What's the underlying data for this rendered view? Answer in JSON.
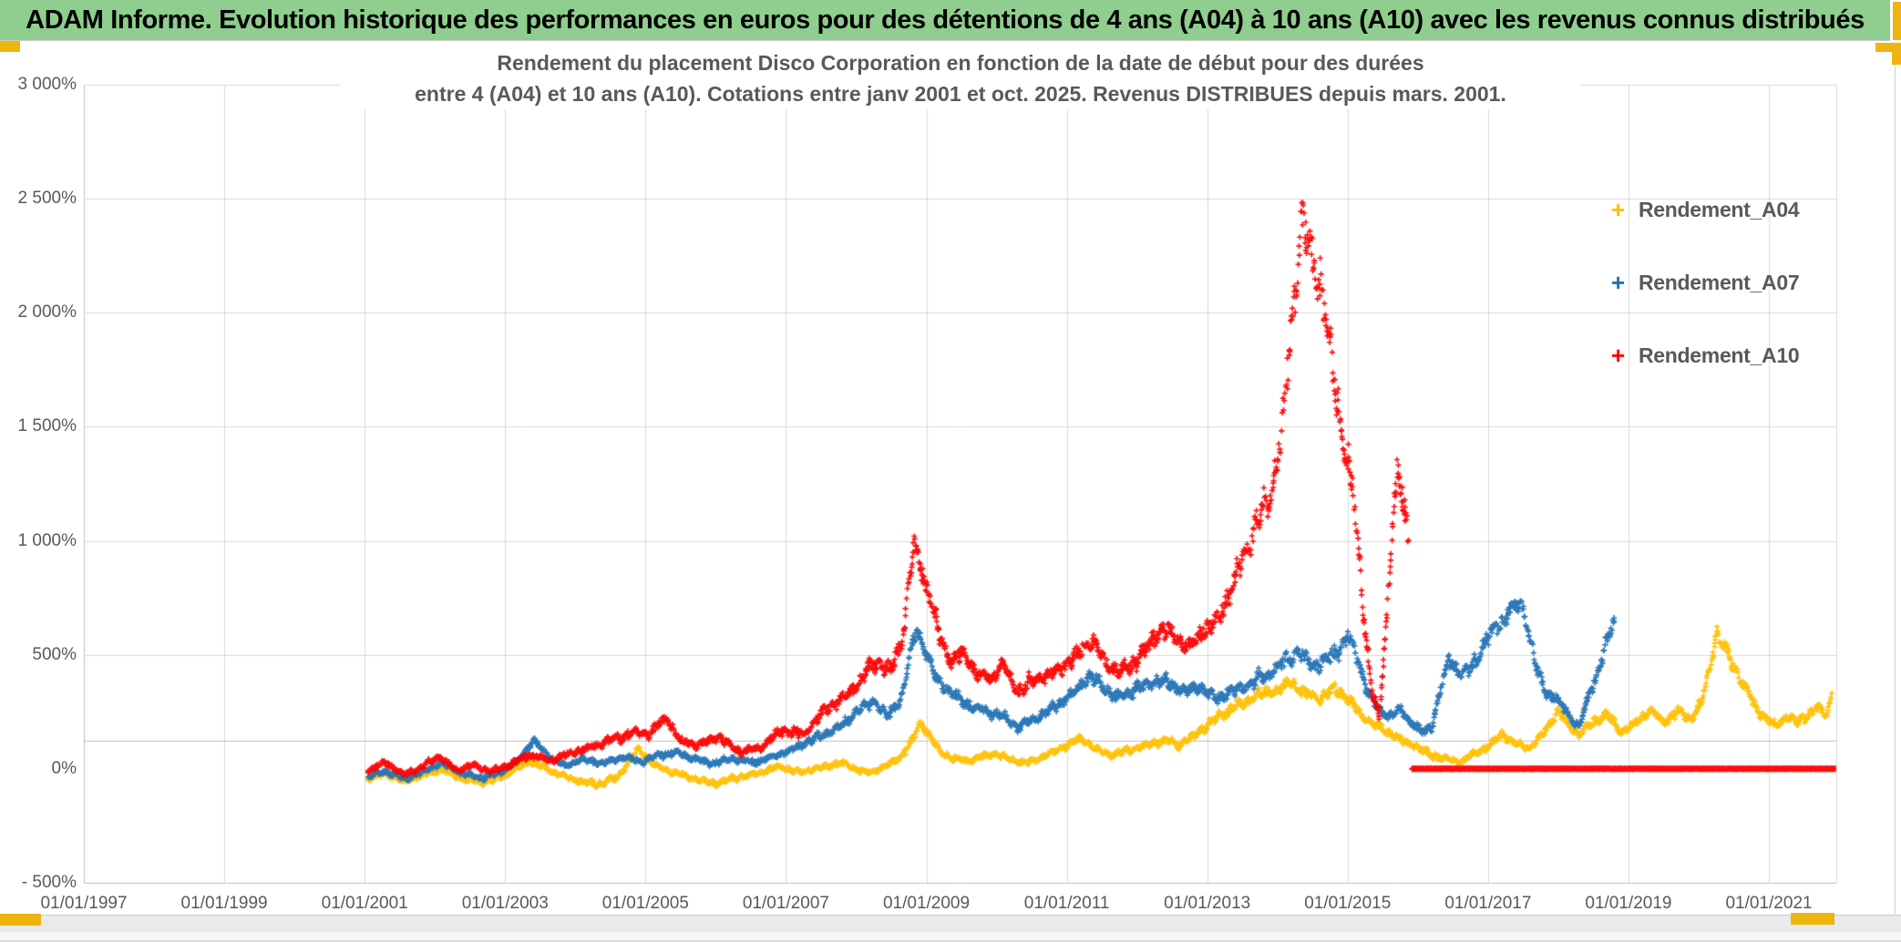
{
  "banner": {
    "text": "ADAM Informe. Evolution historique des performances en euros pour des détentions de 4 ans (A04) à 10 ans (A10) avec les revenus connus distribués"
  },
  "chart": {
    "title_line1": "Rendement du placement Disco Corporation en fonction de la date de début pour des durées",
    "title_line2": "entre 4 (A04) et 10 ans (A10). Cotations entre janv 2001 et oct. 2025. Revenus DISTRIBUES depuis mars. 2001."
  },
  "colors": {
    "banner_bg": "#8fce8e",
    "banner_text": "#000000",
    "gold_accent": "#edb50e",
    "grid": "#d9d9d9",
    "plot_border": "#bfbfbf",
    "axis_text": "#595959",
    "title_text": "#595959"
  },
  "chart_data": {
    "type": "scatter",
    "marker": "plus",
    "legend_position": "right-inside",
    "grid": true,
    "x_axis": {
      "tick_labels": [
        "01/01/1997",
        "01/01/1999",
        "01/01/2001",
        "01/01/2003",
        "01/01/2005",
        "01/01/2007",
        "01/01/2009",
        "01/01/2011",
        "01/01/2013",
        "01/01/2015",
        "01/01/2017",
        "01/01/2019",
        "01/01/2021"
      ],
      "tick_years": [
        1997,
        1999,
        2001,
        2003,
        2005,
        2007,
        2009,
        2011,
        2013,
        2015,
        2017,
        2019,
        2021
      ],
      "range_years": [
        1997,
        2021.96
      ]
    },
    "y_axis": {
      "tick_labels": [
        "3 000%",
        "2 500%",
        "2 000%",
        "1 500%",
        "1 000%",
        "500%",
        "0%",
        "- 500%"
      ],
      "tick_values": [
        3000,
        2500,
        2000,
        1500,
        1000,
        500,
        0,
        -500
      ],
      "range": [
        -500,
        3000
      ],
      "unlabeled_axis_line_value": 124
    },
    "series": [
      {
        "name": "Rendement_A04",
        "color": "#FFC000",
        "noise": {
          "base": 9,
          "prop": 0.035
        },
        "keypoints": [
          [
            2001.05,
            -45
          ],
          [
            2001.3,
            -20
          ],
          [
            2001.55,
            -55
          ],
          [
            2001.8,
            -30
          ],
          [
            2002.1,
            0
          ],
          [
            2002.4,
            -45
          ],
          [
            2002.7,
            -60
          ],
          [
            2003.0,
            -30
          ],
          [
            2003.35,
            35
          ],
          [
            2003.65,
            -10
          ],
          [
            2003.95,
            -45
          ],
          [
            2004.3,
            -70
          ],
          [
            2004.6,
            -40
          ],
          [
            2004.9,
            90
          ],
          [
            2005.1,
            20
          ],
          [
            2005.4,
            -15
          ],
          [
            2005.7,
            -45
          ],
          [
            2006.0,
            -65
          ],
          [
            2006.3,
            -40
          ],
          [
            2006.6,
            -20
          ],
          [
            2006.9,
            10
          ],
          [
            2007.2,
            -15
          ],
          [
            2007.5,
            5
          ],
          [
            2007.8,
            25
          ],
          [
            2008.0,
            0
          ],
          [
            2008.2,
            -20
          ],
          [
            2008.4,
            10
          ],
          [
            2008.6,
            40
          ],
          [
            2008.8,
            120
          ],
          [
            2008.92,
            205
          ],
          [
            2009.05,
            145
          ],
          [
            2009.2,
            70
          ],
          [
            2009.4,
            45
          ],
          [
            2009.6,
            35
          ],
          [
            2009.8,
            55
          ],
          [
            2010.0,
            65
          ],
          [
            2010.2,
            40
          ],
          [
            2010.4,
            25
          ],
          [
            2010.6,
            45
          ],
          [
            2010.8,
            70
          ],
          [
            2011.0,
            105
          ],
          [
            2011.2,
            135
          ],
          [
            2011.4,
            90
          ],
          [
            2011.6,
            60
          ],
          [
            2011.8,
            75
          ],
          [
            2012.0,
            90
          ],
          [
            2012.2,
            110
          ],
          [
            2012.4,
            125
          ],
          [
            2012.6,
            105
          ],
          [
            2012.8,
            140
          ],
          [
            2013.0,
            195
          ],
          [
            2013.2,
            240
          ],
          [
            2013.4,
            270
          ],
          [
            2013.6,
            300
          ],
          [
            2013.8,
            330
          ],
          [
            2014.0,
            345
          ],
          [
            2014.2,
            380
          ],
          [
            2014.4,
            330
          ],
          [
            2014.6,
            305
          ],
          [
            2014.8,
            350
          ],
          [
            2015.0,
            310
          ],
          [
            2015.2,
            235
          ],
          [
            2015.4,
            185
          ],
          [
            2015.6,
            160
          ],
          [
            2015.8,
            120
          ],
          [
            2016.0,
            95
          ],
          [
            2016.2,
            60
          ],
          [
            2016.4,
            45
          ],
          [
            2016.6,
            30
          ],
          [
            2016.8,
            65
          ],
          [
            2017.0,
            95
          ],
          [
            2017.2,
            150
          ],
          [
            2017.4,
            110
          ],
          [
            2017.6,
            90
          ],
          [
            2017.8,
            160
          ],
          [
            2018.0,
            255
          ],
          [
            2018.15,
            190
          ],
          [
            2018.3,
            150
          ],
          [
            2018.5,
            205
          ],
          [
            2018.7,
            235
          ],
          [
            2018.9,
            160
          ],
          [
            2019.1,
            200
          ],
          [
            2019.3,
            255
          ],
          [
            2019.5,
            205
          ],
          [
            2019.7,
            250
          ],
          [
            2019.9,
            220
          ],
          [
            2020.05,
            295
          ],
          [
            2020.15,
            430
          ],
          [
            2020.25,
            600
          ],
          [
            2020.35,
            540
          ],
          [
            2020.5,
            450
          ],
          [
            2020.65,
            360
          ],
          [
            2020.8,
            280
          ],
          [
            2020.95,
            225
          ],
          [
            2021.1,
            185
          ],
          [
            2021.25,
            235
          ],
          [
            2021.4,
            200
          ],
          [
            2021.55,
            240
          ],
          [
            2021.7,
            270
          ],
          [
            2021.8,
            230
          ],
          [
            2021.9,
            320
          ]
        ]
      },
      {
        "name": "Rendement_A07",
        "color": "#2272B4",
        "noise": {
          "base": 9,
          "prop": 0.035
        },
        "keypoints": [
          [
            2001.05,
            -35
          ],
          [
            2001.3,
            -10
          ],
          [
            2001.55,
            -45
          ],
          [
            2001.8,
            -15
          ],
          [
            2002.1,
            25
          ],
          [
            2002.4,
            -25
          ],
          [
            2002.7,
            -40
          ],
          [
            2003.0,
            -5
          ],
          [
            2003.2,
            40
          ],
          [
            2003.4,
            128
          ],
          [
            2003.6,
            60
          ],
          [
            2003.85,
            12
          ],
          [
            2004.1,
            42
          ],
          [
            2004.4,
            22
          ],
          [
            2004.7,
            52
          ],
          [
            2004.95,
            30
          ],
          [
            2005.2,
            60
          ],
          [
            2005.45,
            72
          ],
          [
            2005.7,
            45
          ],
          [
            2005.95,
            22
          ],
          [
            2006.25,
            45
          ],
          [
            2006.55,
            28
          ],
          [
            2006.85,
            58
          ],
          [
            2007.15,
            92
          ],
          [
            2007.45,
            140
          ],
          [
            2007.75,
            178
          ],
          [
            2008.0,
            250
          ],
          [
            2008.25,
            298
          ],
          [
            2008.45,
            228
          ],
          [
            2008.65,
            315
          ],
          [
            2008.85,
            615
          ],
          [
            2008.95,
            550
          ],
          [
            2009.1,
            415
          ],
          [
            2009.3,
            345
          ],
          [
            2009.5,
            298
          ],
          [
            2009.7,
            265
          ],
          [
            2009.9,
            248
          ],
          [
            2010.1,
            228
          ],
          [
            2010.3,
            182
          ],
          [
            2010.5,
            212
          ],
          [
            2010.7,
            248
          ],
          [
            2010.9,
            288
          ],
          [
            2011.1,
            328
          ],
          [
            2011.3,
            408
          ],
          [
            2011.5,
            368
          ],
          [
            2011.7,
            308
          ],
          [
            2011.9,
            338
          ],
          [
            2012.1,
            362
          ],
          [
            2012.3,
            392
          ],
          [
            2012.5,
            368
          ],
          [
            2012.7,
            338
          ],
          [
            2012.9,
            362
          ],
          [
            2013.1,
            308
          ],
          [
            2013.3,
            338
          ],
          [
            2013.5,
            352
          ],
          [
            2013.7,
            388
          ],
          [
            2013.9,
            422
          ],
          [
            2014.1,
            468
          ],
          [
            2014.3,
            518
          ],
          [
            2014.5,
            452
          ],
          [
            2014.7,
            478
          ],
          [
            2014.9,
            528
          ],
          [
            2015.0,
            588
          ],
          [
            2015.15,
            478
          ],
          [
            2015.3,
            328
          ],
          [
            2015.45,
            258
          ],
          [
            2015.6,
            228
          ],
          [
            2015.75,
            258
          ],
          [
            2015.9,
            208
          ],
          [
            2016.05,
            158
          ],
          [
            2016.2,
            188
          ],
          [
            2016.35,
            378
          ],
          [
            2016.45,
            482
          ],
          [
            2016.6,
            418
          ],
          [
            2016.75,
            438
          ],
          [
            2016.9,
            518
          ],
          [
            2017.05,
            598
          ],
          [
            2017.2,
            658
          ],
          [
            2017.35,
            698
          ],
          [
            2017.5,
            718
          ],
          [
            2017.6,
            558
          ],
          [
            2017.7,
            428
          ],
          [
            2017.85,
            328
          ],
          [
            2018.0,
            298
          ],
          [
            2018.15,
            238
          ],
          [
            2018.3,
            178
          ],
          [
            2018.45,
            338
          ],
          [
            2018.6,
            458
          ],
          [
            2018.7,
            558
          ],
          [
            2018.8,
            662
          ]
        ]
      },
      {
        "name": "Rendement_A10",
        "color": "#FF0000",
        "noise": {
          "base": 10,
          "prop": 0.04
        },
        "keypoints": [
          [
            2001.05,
            -10
          ],
          [
            2001.3,
            30
          ],
          [
            2001.55,
            -25
          ],
          [
            2001.8,
            5
          ],
          [
            2002.05,
            55
          ],
          [
            2002.3,
            -5
          ],
          [
            2002.55,
            15
          ],
          [
            2002.8,
            -10
          ],
          [
            2003.05,
            15
          ],
          [
            2003.35,
            60
          ],
          [
            2003.65,
            35
          ],
          [
            2003.95,
            70
          ],
          [
            2004.25,
            95
          ],
          [
            2004.55,
            130
          ],
          [
            2004.85,
            160
          ],
          [
            2005.05,
            150
          ],
          [
            2005.3,
            225
          ],
          [
            2005.5,
            120
          ],
          [
            2005.75,
            105
          ],
          [
            2006.05,
            140
          ],
          [
            2006.35,
            70
          ],
          [
            2006.65,
            95
          ],
          [
            2006.95,
            170
          ],
          [
            2007.25,
            150
          ],
          [
            2007.55,
            255
          ],
          [
            2007.85,
            315
          ],
          [
            2008.05,
            385
          ],
          [
            2008.3,
            480
          ],
          [
            2008.5,
            430
          ],
          [
            2008.65,
            555
          ],
          [
            2008.82,
            975
          ],
          [
            2008.92,
            890
          ],
          [
            2009.05,
            760
          ],
          [
            2009.2,
            560
          ],
          [
            2009.35,
            470
          ],
          [
            2009.5,
            515
          ],
          [
            2009.7,
            425
          ],
          [
            2009.9,
            395
          ],
          [
            2010.1,
            450
          ],
          [
            2010.3,
            335
          ],
          [
            2010.5,
            385
          ],
          [
            2010.75,
            415
          ],
          [
            2010.95,
            455
          ],
          [
            2011.15,
            495
          ],
          [
            2011.35,
            565
          ],
          [
            2011.55,
            470
          ],
          [
            2011.75,
            415
          ],
          [
            2011.95,
            465
          ],
          [
            2012.15,
            535
          ],
          [
            2012.35,
            615
          ],
          [
            2012.55,
            580
          ],
          [
            2012.75,
            530
          ],
          [
            2012.95,
            605
          ],
          [
            2013.15,
            655
          ],
          [
            2013.35,
            800
          ],
          [
            2013.55,
            955
          ],
          [
            2013.75,
            1115
          ],
          [
            2013.9,
            1190
          ],
          [
            2014.05,
            1450
          ],
          [
            2014.15,
            1750
          ],
          [
            2014.25,
            2100
          ],
          [
            2014.35,
            2420
          ],
          [
            2014.45,
            2260
          ],
          [
            2014.55,
            2180
          ],
          [
            2014.65,
            2090
          ],
          [
            2014.75,
            1820
          ],
          [
            2014.85,
            1590
          ],
          [
            2014.95,
            1430
          ],
          [
            2015.05,
            1270
          ],
          [
            2015.15,
            990
          ],
          [
            2015.25,
            610
          ],
          [
            2015.35,
            340
          ],
          [
            2015.45,
            215
          ],
          [
            2015.55,
            650
          ],
          [
            2015.65,
            1120
          ],
          [
            2015.72,
            1300
          ],
          [
            2015.8,
            1120
          ],
          [
            2015.87,
            1020
          ]
        ],
        "zero_segment_years": [
          2015.92,
          2021.95
        ],
        "zero_segment_value": 0
      }
    ]
  }
}
